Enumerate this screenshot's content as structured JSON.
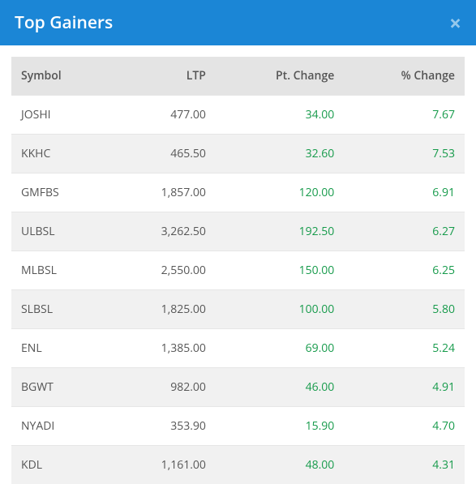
{
  "header": {
    "title": "Top Gainers",
    "close_glyph": "×",
    "bg_color": "#1b86d6",
    "close_color": "#bedff4"
  },
  "table": {
    "columns": [
      "Symbol",
      "LTP",
      "Pt. Change",
      "% Change"
    ],
    "positive_color": "#159a4a",
    "rows": [
      {
        "symbol": "JOSHI",
        "ltp": "477.00",
        "pt_change": "34.00",
        "pct_change": "7.67"
      },
      {
        "symbol": "KKHC",
        "ltp": "465.50",
        "pt_change": "32.60",
        "pct_change": "7.53"
      },
      {
        "symbol": "GMFBS",
        "ltp": "1,857.00",
        "pt_change": "120.00",
        "pct_change": "6.91"
      },
      {
        "symbol": "ULBSL",
        "ltp": "3,262.50",
        "pt_change": "192.50",
        "pct_change": "6.27"
      },
      {
        "symbol": "MLBSL",
        "ltp": "2,550.00",
        "pt_change": "150.00",
        "pct_change": "6.25"
      },
      {
        "symbol": "SLBSL",
        "ltp": "1,825.00",
        "pt_change": "100.00",
        "pct_change": "5.80"
      },
      {
        "symbol": "ENL",
        "ltp": "1,385.00",
        "pt_change": "69.00",
        "pct_change": "5.24"
      },
      {
        "symbol": "BGWT",
        "ltp": "982.00",
        "pt_change": "46.00",
        "pct_change": "4.91"
      },
      {
        "symbol": "NYADI",
        "ltp": "353.90",
        "pt_change": "15.90",
        "pct_change": "4.70"
      },
      {
        "symbol": "KDL",
        "ltp": "1,161.00",
        "pt_change": "48.00",
        "pct_change": "4.31"
      }
    ]
  }
}
